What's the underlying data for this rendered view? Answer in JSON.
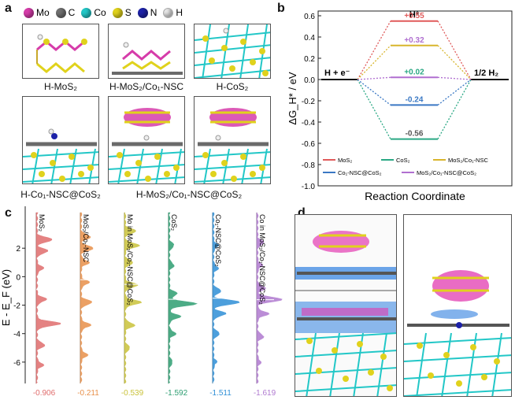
{
  "panels": {
    "a": "a",
    "b": "b",
    "c": "c",
    "d": "d"
  },
  "legend_atoms": [
    {
      "symbol": "Mo",
      "color": "#d63caa"
    },
    {
      "symbol": "C",
      "color": "#707070"
    },
    {
      "symbol": "Co",
      "color": "#22c7c7"
    },
    {
      "symbol": "S",
      "color": "#e0d21c"
    },
    {
      "symbol": "N",
      "color": "#1d22a8"
    },
    {
      "symbol": "H",
      "color": "#e8e8e8"
    }
  ],
  "structures": {
    "s1": "H-MoS₂",
    "s2": "H-MoS₂/Co₁-NSC",
    "s3": "H-CoS₂",
    "s4": "H-Co₁-NSC@CoS₂",
    "s5": "H-MoS₂/Co₁-NSC@CoS₂"
  },
  "chart_data": [
    {
      "type": "line",
      "ylabel": "ΔG_H* / eV",
      "xlabel": "Reaction Coordinate",
      "ylim": [
        -1.0,
        0.6
      ],
      "yticks": [
        "0.6",
        "0.4",
        "0.2",
        "0.0",
        "-0.2",
        "-0.4",
        "-0.6",
        "-0.8",
        "-1.0"
      ],
      "left_label": "H + e⁻",
      "mid_label": "H*",
      "right_label": "1/2 H₂",
      "series": [
        {
          "name": "MoS₂",
          "value": 0.55,
          "label": "+0.55",
          "color": "#e05a5a"
        },
        {
          "name": "CoS₂",
          "value": -0.56,
          "label": "-0.56",
          "color": "#2aa884"
        },
        {
          "name": "MoS₂/Co₁-NSC",
          "value": 0.32,
          "label": "+0.32",
          "color": "#d8b52c"
        },
        {
          "name": "Co₁-NSC@CoS₂",
          "value": -0.24,
          "label": "-0.24",
          "color": "#3a78c4"
        },
        {
          "name": "MoS₂/Co₁-NSC@CoS₂",
          "value": 0.02,
          "label": "+0.02",
          "color": "#b06fd0"
        }
      ],
      "label_colors": [
        "#e05a5a",
        "#555555",
        "#b06fd0",
        "#3a78c4",
        "#2aa884"
      ]
    },
    {
      "type": "area",
      "ylabel": "E - E_F (eV)",
      "ylim": [
        -7.5,
        4.5
      ],
      "yticks": [
        "2",
        "0",
        "-2",
        "-4",
        "-6"
      ],
      "ytick_values": [
        2,
        0,
        -2,
        -4,
        -6
      ],
      "series": [
        {
          "name": "MoS₂",
          "center": "-0.906",
          "color": "#e06d6d"
        },
        {
          "name": "MoS₂/Co₁-NSC",
          "center": "-0.211",
          "color": "#e8904a"
        },
        {
          "name": "Mo in MoS₂/Co₁-NSC@CoS₂",
          "center": "-0.539",
          "color": "#c9c23a"
        },
        {
          "name": "CoS₂",
          "center": "-1.592",
          "color": "#2e9e72"
        },
        {
          "name": "Co₁-NSC@CoS₂",
          "center": "-1.511",
          "color": "#2f8fd6"
        },
        {
          "name": "Co in MoS₂/Co₁-NSC@CoS₂",
          "center": "-1.619",
          "color": "#b07ad0"
        }
      ]
    }
  ]
}
